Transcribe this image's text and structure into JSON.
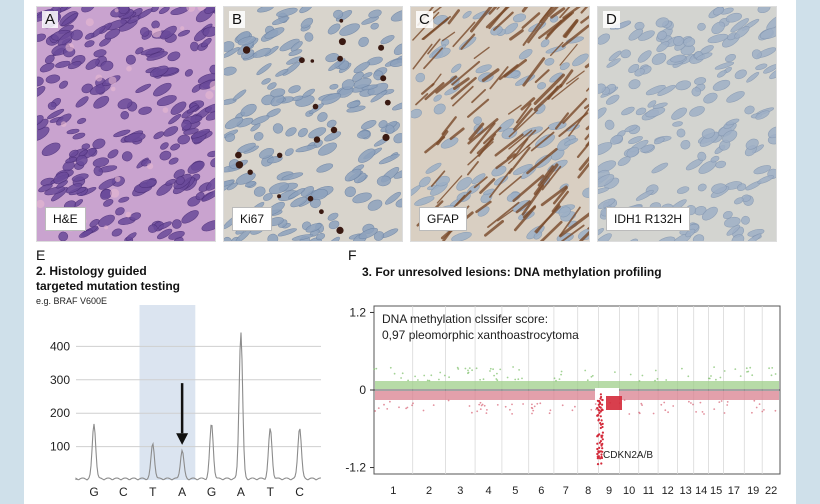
{
  "panels": [
    {
      "letter": "A",
      "stain": "H&E"
    },
    {
      "letter": "B",
      "stain": "Ki67"
    },
    {
      "letter": "C",
      "stain": "GFAP"
    },
    {
      "letter": "D",
      "stain": "IDH1 R132H"
    }
  ],
  "section_e": {
    "letter": "E",
    "title_line1": "2. Histology guided",
    "title_line2": "targeted mutation testing",
    "example": "e.g. BRAF V600E"
  },
  "section_f": {
    "letter": "F",
    "title": "3. For unresolved lesions: DNA methylation profiling",
    "score_line1": "DNA methylation clssifer score:",
    "score_line2": "0,97 pleomorphic xanthoastrocytoma",
    "gene_label": "CDKN2A/B"
  },
  "chart_data": [
    {
      "type": "line",
      "y_ticks": [
        100,
        200,
        300,
        400
      ],
      "ylim": [
        0,
        500
      ],
      "bases": [
        "G",
        "C",
        "T",
        "A",
        "G",
        "A",
        "T",
        "C"
      ],
      "peaks": [
        165,
        0,
        105,
        85,
        165,
        440,
        150,
        155
      ],
      "highlight_bases": [
        2,
        3
      ],
      "arrow_base": 3
    },
    {
      "type": "scatter",
      "y_ticks": [
        "1.2",
        "0",
        "-1.2"
      ],
      "ylim": [
        -1.3,
        1.3
      ],
      "chromosomes": [
        "1",
        "2",
        "3",
        "4",
        "5",
        "6",
        "7",
        "8",
        "9",
        "10",
        "11",
        "12",
        "13",
        "14",
        "15",
        "17",
        "19",
        "22"
      ],
      "deletion_chromosome": "9",
      "colors": {
        "gain": "#9fcf8a",
        "loss": "#d9808f",
        "loss_dark": "#d42a3a"
      }
    }
  ]
}
